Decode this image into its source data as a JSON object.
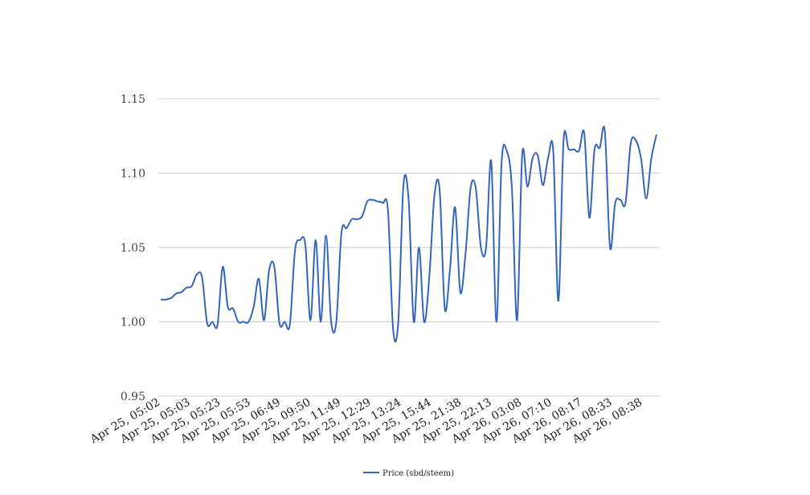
{
  "chart_data": {
    "type": "line",
    "title": "",
    "xlabel": "",
    "ylabel": "",
    "ylim": [
      0.95,
      1.15
    ],
    "yticks": [
      "0.95",
      "1.00",
      "1.05",
      "1.10",
      "1.15"
    ],
    "grid": true,
    "legend_position": "bottom-center",
    "x_tick_labels": [
      "Apr 25, 05:02",
      "Apr 25, 05:03",
      "Apr 25, 05:23",
      "Apr 25, 05:53",
      "Apr 25, 06:49",
      "Apr 25, 09:50",
      "Apr 25, 11:49",
      "Apr 25, 12:29",
      "Apr 25, 13:24",
      "Apr 25, 15:44",
      "Apr 25, 21:38",
      "Apr 25, 22:13",
      "Apr 26, 03:08",
      "Apr 26, 07:10",
      "Apr 26, 08:17",
      "Apr 26, 08:33",
      "Apr 26, 08:38"
    ],
    "series": [
      {
        "name": "Price (sbd/steem)",
        "color": "#3366bb",
        "values": [
          1.015,
          1.015,
          1.016,
          1.019,
          1.02,
          1.023,
          1.024,
          1.032,
          1.03,
          0.999,
          1.0,
          0.998,
          1.037,
          1.01,
          1.009,
          1.0,
          1.0,
          1.0,
          1.01,
          1.029,
          1.001,
          1.035,
          1.037,
          0.999,
          1.0,
          0.998,
          1.048,
          1.055,
          1.052,
          1.001,
          1.055,
          1.0,
          1.058,
          1.0,
          1.0,
          1.06,
          1.063,
          1.069,
          1.069,
          1.071,
          1.081,
          1.082,
          1.081,
          1.08,
          1.075,
          0.995,
          1.0,
          1.092,
          1.082,
          1.0,
          1.05,
          1.0,
          1.03,
          1.085,
          1.089,
          1.009,
          1.035,
          1.077,
          1.02,
          1.045,
          1.09,
          1.09,
          1.05,
          1.05,
          1.108,
          1.0,
          1.107,
          1.115,
          1.09,
          1.001,
          1.113,
          1.091,
          1.11,
          1.112,
          1.092,
          1.11,
          1.115,
          1.014,
          1.122,
          1.116,
          1.116,
          1.115,
          1.127,
          1.07,
          1.116,
          1.117,
          1.128,
          1.05,
          1.08,
          1.082,
          1.08,
          1.12,
          1.122,
          1.11,
          1.083,
          1.11,
          1.126
        ]
      }
    ]
  }
}
